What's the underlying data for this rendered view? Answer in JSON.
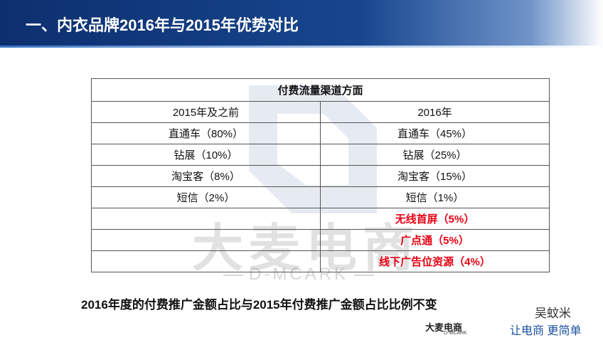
{
  "header": {
    "title": "一、内衣品牌2016年与2015年优势对比"
  },
  "table": {
    "title": "付费流量渠道方面",
    "columns": [
      "2015年及之前",
      "2016年"
    ],
    "left": [
      "直通车（80%）",
      "钻展（10%）",
      "淘宝客（8%）",
      "短信（2%）"
    ],
    "right": [
      "直通车（45%）",
      "钻展（25%）",
      "淘宝客（15%）",
      "短信（1%）",
      "无线首屏（5%）",
      "广点通（5%）",
      "线下广告位资源（4%）"
    ]
  },
  "footer": {
    "note": "2016年度的付费推广金额占比与2015年付费推广金额占比比例不变"
  },
  "watermark": {
    "brand": "大麦电商",
    "sub": "D-MCARK"
  },
  "logo": {
    "brand": "大麦电商",
    "sub": "D-MCARK"
  },
  "wechat": {
    "name": "吴蚊米",
    "slogan": "让电商 更简单"
  }
}
